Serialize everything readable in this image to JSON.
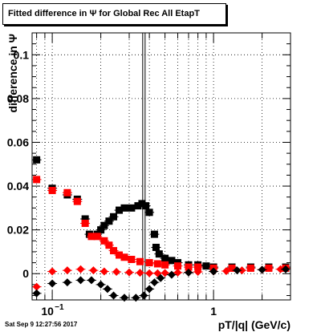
{
  "title": "Fitted difference in Ψ  for Global Rec All EtapT",
  "footer": "Sat Sep  9 12:27:56 2017",
  "chart_data": {
    "type": "scatter",
    "title": "Fitted difference in Ψ  for Global Rec All EtapT",
    "xlabel": "pT/|q| (GeV/c)",
    "ylabel": "difference in Ψ",
    "xscale": "log",
    "xlim": [
      0.075,
      3.0
    ],
    "ylim": [
      -0.012,
      0.11
    ],
    "grid": true,
    "yticks": [
      {
        "value": 0,
        "label": "0"
      },
      {
        "value": 0.02,
        "label": "0.02"
      },
      {
        "value": 0.04,
        "label": "0.04"
      },
      {
        "value": 0.06,
        "label": "0.06"
      },
      {
        "value": 0.08,
        "label": "0.08"
      },
      {
        "value": 0.1,
        "label": "0.1"
      }
    ],
    "xticks": [
      {
        "value": 0.1,
        "label": "10",
        "exp": "−1"
      },
      {
        "value": 1,
        "label": "1",
        "exp": ""
      }
    ],
    "series": [
      {
        "color": "#000000",
        "marker": "square",
        "points": [
          [
            0.08,
            0.052
          ],
          [
            0.1,
            0.039
          ],
          [
            0.124,
            0.036
          ],
          [
            0.143,
            0.034
          ],
          [
            0.16,
            0.025
          ],
          [
            0.17,
            0.018
          ],
          [
            0.19,
            0.018
          ],
          [
            0.2,
            0.02
          ],
          [
            0.21,
            0.022
          ],
          [
            0.225,
            0.024
          ],
          [
            0.24,
            0.026
          ],
          [
            0.26,
            0.029
          ],
          [
            0.28,
            0.03
          ],
          [
            0.31,
            0.03
          ],
          [
            0.34,
            0.031
          ],
          [
            0.36,
            0.032
          ],
          [
            0.38,
            0.031
          ],
          [
            0.4,
            0.028
          ],
          [
            0.43,
            0.018
          ],
          [
            0.44,
            0.012
          ],
          [
            0.46,
            0.009
          ],
          [
            0.5,
            0.007
          ],
          [
            0.55,
            0.006
          ],
          [
            0.6,
            0.005
          ],
          [
            0.7,
            0.004
          ],
          [
            0.8,
            0.004
          ],
          [
            0.9,
            0.0035
          ],
          [
            1.0,
            0.003
          ],
          [
            1.3,
            0.003
          ],
          [
            1.7,
            0.003
          ],
          [
            2.2,
            0.003
          ],
          [
            2.8,
            0.003
          ]
        ]
      },
      {
        "color": "#ff0000",
        "marker": "square",
        "points": [
          [
            0.08,
            0.043
          ],
          [
            0.1,
            0.038
          ],
          [
            0.124,
            0.037
          ],
          [
            0.143,
            0.033
          ],
          [
            0.16,
            0.023
          ],
          [
            0.175,
            0.017
          ],
          [
            0.19,
            0.017
          ],
          [
            0.21,
            0.015
          ],
          [
            0.225,
            0.013
          ],
          [
            0.24,
            0.0105
          ],
          [
            0.26,
            0.0085
          ],
          [
            0.28,
            0.0075
          ],
          [
            0.31,
            0.0065
          ],
          [
            0.35,
            0.0055
          ],
          [
            0.4,
            0.005
          ],
          [
            0.45,
            0.0045
          ],
          [
            0.5,
            0.004
          ],
          [
            0.6,
            0.0035
          ],
          [
            0.7,
            0.003
          ],
          [
            0.8,
            0.003
          ],
          [
            1.0,
            0.0025
          ],
          [
            1.3,
            0.0025
          ],
          [
            1.7,
            0.0025
          ],
          [
            2.2,
            0.0025
          ],
          [
            2.8,
            0.0025
          ]
        ]
      },
      {
        "color": "#ff0000",
        "marker": "diamond",
        "points": [
          [
            0.08,
            -0.006
          ],
          [
            0.1,
            0.001
          ],
          [
            0.124,
            0.0015
          ],
          [
            0.15,
            0.002
          ],
          [
            0.18,
            0.0015
          ],
          [
            0.21,
            0.001
          ],
          [
            0.25,
            0.0008
          ],
          [
            0.3,
            0.0006
          ],
          [
            0.35,
            0.0004
          ],
          [
            0.4,
            0.0002
          ],
          [
            0.45,
            0.0002
          ],
          [
            0.5,
            0.0003
          ],
          [
            0.6,
            0.0005
          ],
          [
            0.7,
            0.0006
          ],
          [
            0.8,
            0.0008
          ],
          [
            1.0,
            0.001
          ],
          [
            1.2,
            0.0012
          ],
          [
            1.5,
            0.0015
          ],
          [
            2.0,
            0.0018
          ],
          [
            2.6,
            0.002
          ]
        ]
      },
      {
        "color": "#000000",
        "marker": "diamond",
        "points": [
          [
            0.08,
            -0.009
          ],
          [
            0.1,
            -0.0045
          ],
          [
            0.124,
            -0.004
          ],
          [
            0.15,
            -0.003
          ],
          [
            0.175,
            -0.003
          ],
          [
            0.2,
            -0.005
          ],
          [
            0.22,
            -0.007
          ],
          [
            0.24,
            -0.01
          ],
          [
            0.28,
            -0.011
          ],
          [
            0.33,
            -0.011
          ],
          [
            0.37,
            -0.01
          ],
          [
            0.4,
            -0.007
          ],
          [
            0.43,
            -0.004
          ],
          [
            0.47,
            -0.002
          ],
          [
            0.55,
            -0.0005
          ],
          [
            0.7,
            0.0005
          ],
          [
            1.0,
            0.001
          ],
          [
            1.4,
            0.0015
          ],
          [
            2.0,
            0.0018
          ],
          [
            2.8,
            0.002
          ]
        ]
      }
    ],
    "vlines": [
      0.37
    ]
  }
}
